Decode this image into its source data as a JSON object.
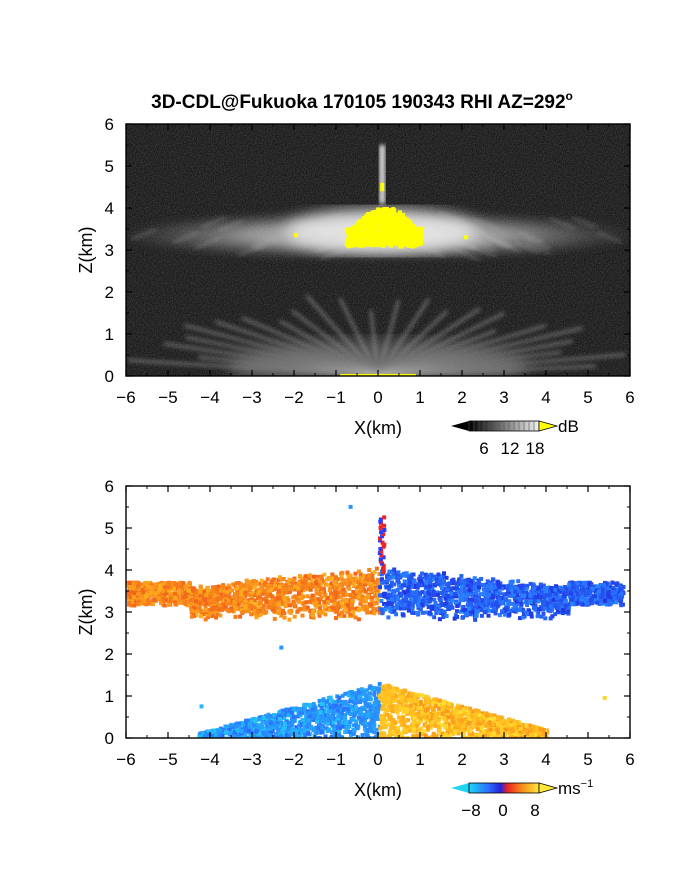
{
  "title": "3D-CDL@Fukuoka 170105 190343 RHI AZ=292",
  "title_superscript": "o",
  "chart_data": [
    {
      "type": "heatmap",
      "quantity": "reflectivity",
      "xlabel": "X(km)",
      "ylabel": "Z(km)",
      "xlim": [
        -6,
        6
      ],
      "ylim": [
        0,
        6
      ],
      "xticks": [
        "-6",
        "-5",
        "-4",
        "-3",
        "-2",
        "-1",
        "0",
        "1",
        "2",
        "3",
        "4",
        "5",
        "6"
      ],
      "yticks": [
        "0",
        "1",
        "2",
        "3",
        "4",
        "5",
        "6"
      ],
      "grid": false,
      "colorbar": {
        "unit": "dB",
        "ticks": [
          6,
          12,
          18
        ],
        "tick_labels": [
          "6",
          "12",
          "18"
        ],
        "colormap": "grayscale with yellow above max",
        "over_color": "#ffff00"
      },
      "features": [
        {
          "kind": "cloud layer",
          "x_range": [
            -6,
            6
          ],
          "z_range": [
            2.9,
            4.1
          ]
        },
        {
          "kind": "high-reflectivity core",
          "x_range": [
            -0.8,
            1.0
          ],
          "z_range": [
            3.1,
            4.1
          ],
          "value": "above 18 dB"
        },
        {
          "kind": "vertical spike",
          "x": 0.1,
          "z_range": [
            4.1,
            5.5
          ]
        },
        {
          "kind": "near-ground beam fan",
          "x_range": [
            -4,
            4.5
          ],
          "z_range": [
            0,
            1.5
          ]
        }
      ]
    },
    {
      "type": "heatmap",
      "quantity": "Doppler velocity",
      "xlabel": "X(km)",
      "ylabel": "Z(km)",
      "xlim": [
        -6,
        6
      ],
      "ylim": [
        0,
        6
      ],
      "xticks": [
        "-6",
        "-5",
        "-4",
        "-3",
        "-2",
        "-1",
        "0",
        "1",
        "2",
        "3",
        "4",
        "5",
        "6"
      ],
      "yticks": [
        "0",
        "1",
        "2",
        "3",
        "4",
        "5",
        "6"
      ],
      "grid": false,
      "colorbar": {
        "unit": "ms",
        "unit_superscript": "-1",
        "ticks": [
          -8,
          0,
          8
        ],
        "tick_labels": [
          "-8",
          "0",
          "8"
        ],
        "colormap": "cyan-blue-red-orange-yellow"
      },
      "features": [
        {
          "kind": "upper layer",
          "x_range": [
            -6,
            0
          ],
          "z_range": [
            2.8,
            4.0
          ],
          "velocity": 4
        },
        {
          "kind": "upper layer",
          "x_range": [
            0,
            5.8
          ],
          "z_range": [
            2.8,
            4.2
          ],
          "velocity": -4
        },
        {
          "kind": "lower layer",
          "x_range": [
            -4.3,
            0
          ],
          "z_range": [
            0,
            1.4
          ],
          "velocity": -6
        },
        {
          "kind": "lower layer",
          "x_range": [
            0,
            4
          ],
          "z_range": [
            0,
            1.3
          ],
          "velocity": 6
        }
      ]
    }
  ],
  "colors": {
    "background": "#ffffff",
    "axis": "#000000",
    "yellow": "#ffff00",
    "blue": "#1a3cff",
    "red": "#ee2222",
    "orange": "#f46a1a",
    "cyan": "#22d4f4",
    "gold": "#ffc81e"
  }
}
